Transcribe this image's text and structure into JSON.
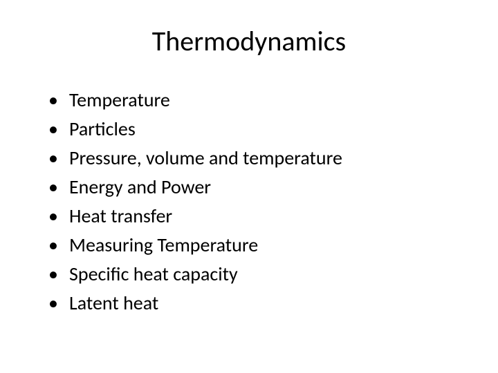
{
  "slide": {
    "title": "Thermodynamics",
    "title_fontsize": 40,
    "title_color": "#000000",
    "background_color": "#ffffff",
    "bullet_fontsize": 28,
    "bullet_color": "#000000",
    "bullets": [
      "Temperature",
      "Particles",
      "Pressure, volume and temperature",
      "Energy and Power",
      "Heat transfer",
      "Measuring Temperature",
      "Specific heat capacity",
      "Latent heat"
    ]
  }
}
